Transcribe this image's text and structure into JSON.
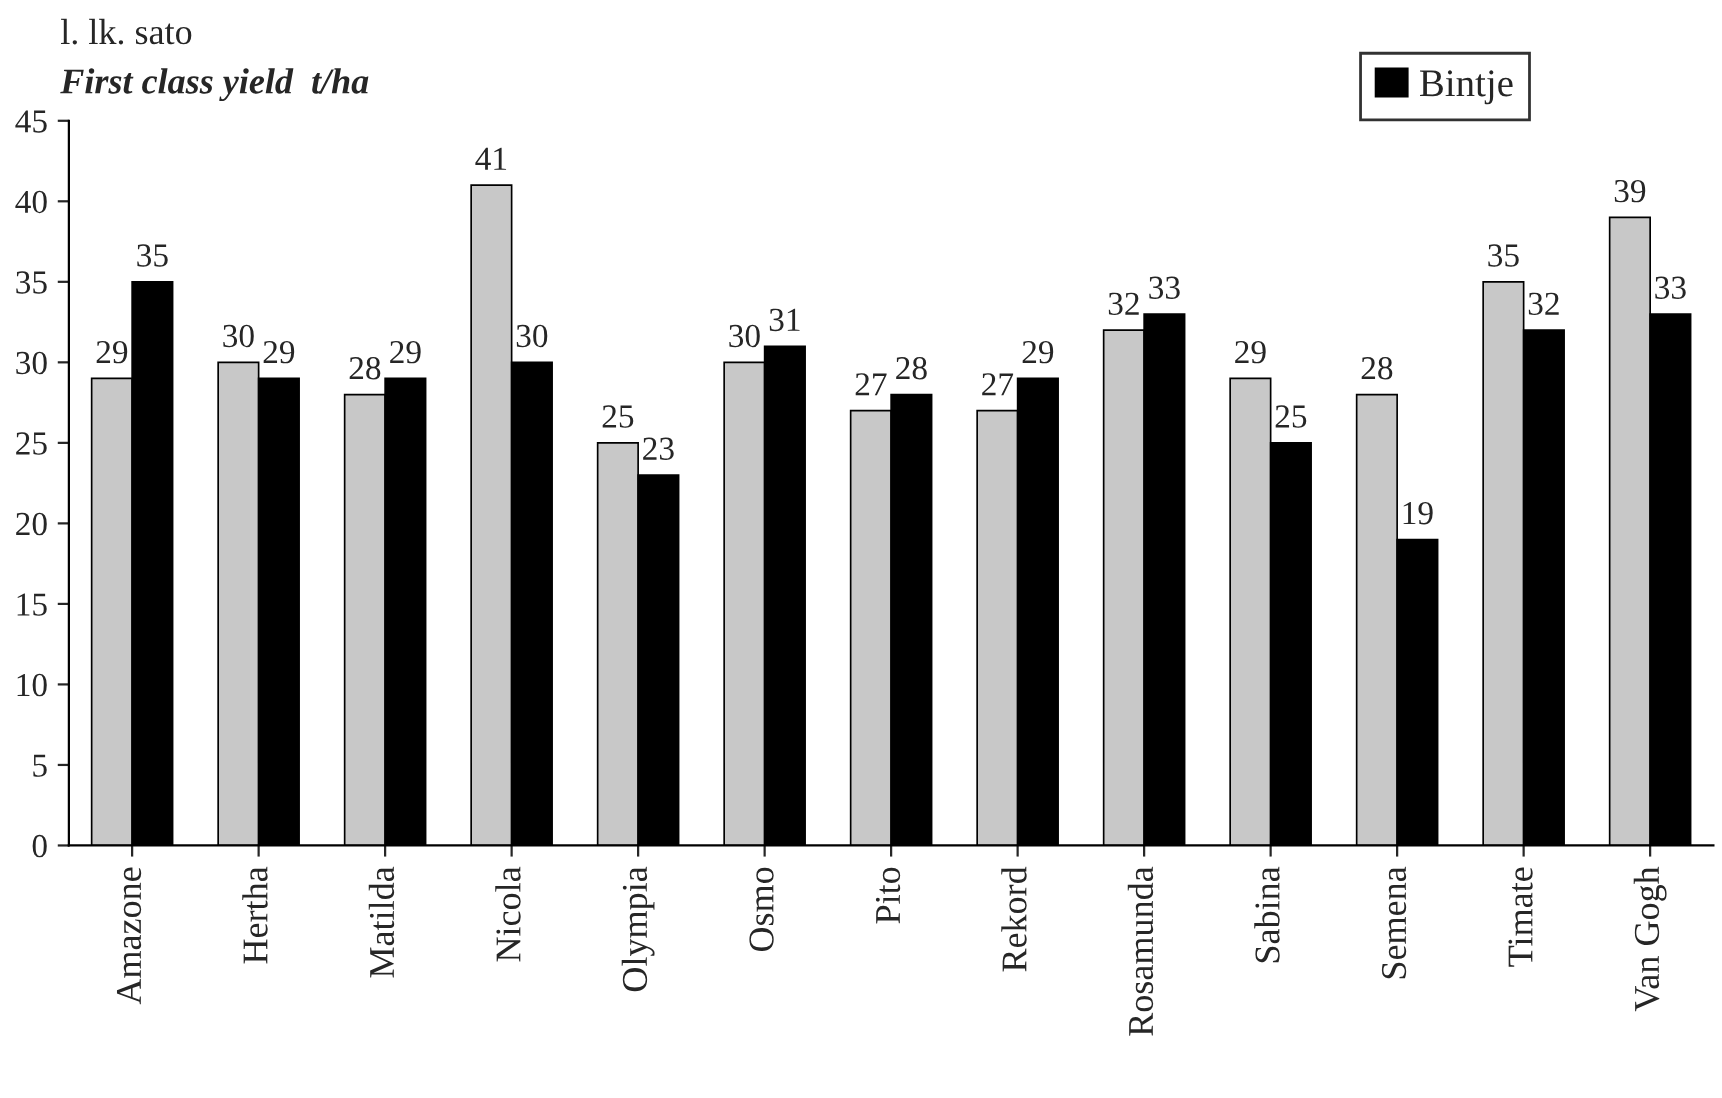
{
  "chart_data": {
    "type": "bar",
    "title": "l. lk. sato",
    "subtitle": "First class yield  t/ha",
    "categories": [
      "Amazone",
      "Hertha",
      "Matilda",
      "Nicola",
      "Olympia",
      "Osmo",
      "Pito",
      "Rekord",
      "Rosamunda",
      "Sabina",
      "Semena",
      "Timate",
      "Van Gogh"
    ],
    "series": [
      {
        "color": "#c8c8c8",
        "values": [
          29,
          30,
          28,
          41,
          25,
          30,
          27,
          27,
          32,
          29,
          28,
          35,
          39
        ]
      },
      {
        "name": "Bintje",
        "color": "#000000",
        "values": [
          35,
          29,
          29,
          30,
          23,
          31,
          28,
          29,
          33,
          25,
          19,
          32,
          33
        ]
      }
    ],
    "ylim": [
      0,
      45
    ],
    "yticks": [
      0,
      5,
      10,
      15,
      20,
      25,
      30,
      35,
      40,
      45
    ],
    "grid": false,
    "data_labels": true,
    "legend": "top right"
  }
}
